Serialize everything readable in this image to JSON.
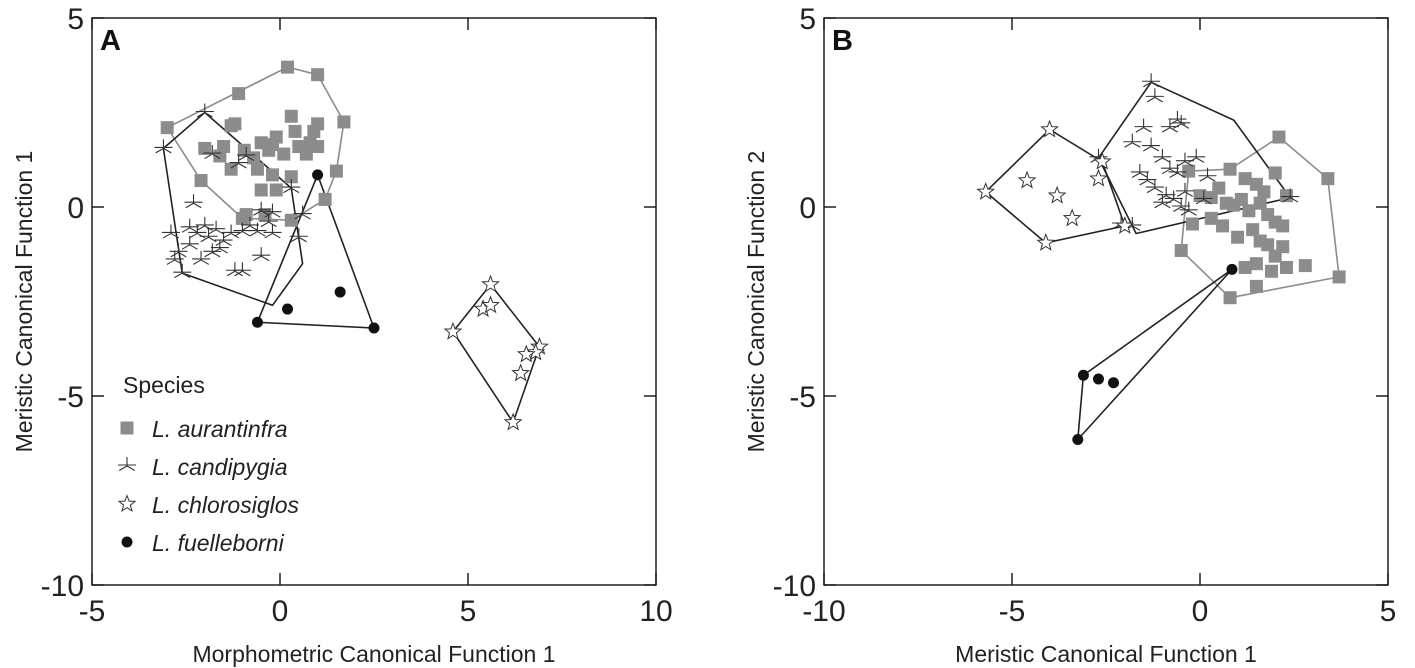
{
  "chart_data": [
    {
      "type": "scatter",
      "panel": "A",
      "xlabel": "Morphometric Canonical Function 1",
      "ylabel": "Meristic Canonical Function 1",
      "xlim": [
        -5,
        10
      ],
      "ylim": [
        -10,
        5
      ],
      "xticks": [
        -5,
        0,
        5,
        10
      ],
      "yticks": [
        -10,
        -5,
        0,
        5
      ],
      "grid": false,
      "legend": {
        "title": "Species",
        "placement": "bottom-left",
        "entries": [
          "L. aurantinfra",
          "L. candipygia",
          "L. chlorosiglos",
          "L. fuelleborni"
        ]
      },
      "series": [
        {
          "name": "L. aurantinfra",
          "marker": "square",
          "color": "#8c8c8c",
          "hull_color": "#8c8c8c",
          "points": [
            [
              -3.0,
              2.1
            ],
            [
              0.2,
              3.7
            ],
            [
              1.0,
              3.5
            ],
            [
              1.7,
              2.25
            ],
            [
              1.5,
              0.95
            ],
            [
              1.2,
              0.2
            ],
            [
              0.3,
              -0.35
            ],
            [
              -1.0,
              -0.3
            ],
            [
              -2.1,
              0.7
            ],
            [
              -1.1,
              3.0
            ],
            [
              -1.3,
              2.15
            ],
            [
              -1.2,
              2.2
            ],
            [
              -2.0,
              1.55
            ],
            [
              -1.6,
              1.35
            ],
            [
              -1.5,
              1.6
            ],
            [
              -0.95,
              1.5
            ],
            [
              -0.7,
              1.3
            ],
            [
              -0.5,
              1.7
            ],
            [
              -0.3,
              1.5
            ],
            [
              -0.2,
              1.65
            ],
            [
              -0.1,
              1.85
            ],
            [
              0.1,
              1.4
            ],
            [
              0.3,
              2.4
            ],
            [
              0.4,
              2.0
            ],
            [
              0.5,
              1.6
            ],
            [
              0.7,
              1.4
            ],
            [
              0.8,
              1.7
            ],
            [
              0.9,
              2.0
            ],
            [
              1.0,
              2.2
            ],
            [
              1.0,
              1.6
            ],
            [
              -1.3,
              1.0
            ],
            [
              -0.6,
              1.0
            ],
            [
              -0.2,
              0.85
            ],
            [
              0.3,
              0.8
            ],
            [
              -0.5,
              0.45
            ],
            [
              -0.1,
              0.45
            ],
            [
              -0.9,
              -0.2
            ],
            [
              -0.4,
              -0.2
            ]
          ],
          "hull": [
            [
              -3.0,
              2.1
            ],
            [
              0.2,
              3.7
            ],
            [
              1.0,
              3.5
            ],
            [
              1.7,
              2.25
            ],
            [
              1.5,
              0.95
            ],
            [
              1.2,
              0.2
            ],
            [
              0.3,
              -0.35
            ],
            [
              -1.0,
              -0.3
            ],
            [
              -2.1,
              0.7
            ],
            [
              -3.0,
              2.1
            ]
          ]
        },
        {
          "name": "L. candipygia",
          "marker": "asterisk",
          "color": "#333333",
          "hull_color": "#222222",
          "points": [
            [
              -3.1,
              1.55
            ],
            [
              -2.0,
              2.5
            ],
            [
              -1.8,
              1.4
            ],
            [
              -1.1,
              1.15
            ],
            [
              -0.9,
              1.35
            ],
            [
              -2.3,
              0.1
            ],
            [
              -2.4,
              -0.55
            ],
            [
              -2.2,
              -0.7
            ],
            [
              -2.0,
              -0.5
            ],
            [
              -1.9,
              -0.8
            ],
            [
              -1.7,
              -0.6
            ],
            [
              -1.5,
              -0.9
            ],
            [
              -1.3,
              -0.7
            ],
            [
              -1.0,
              -0.65
            ],
            [
              -0.8,
              -0.5
            ],
            [
              -0.6,
              -0.65
            ],
            [
              -0.3,
              -0.4
            ],
            [
              -0.5,
              -0.1
            ],
            [
              -0.2,
              -0.15
            ],
            [
              0.3,
              0.5
            ],
            [
              0.6,
              -0.2
            ],
            [
              -2.9,
              -0.7
            ],
            [
              -2.7,
              -1.2
            ],
            [
              -2.6,
              -1.75
            ],
            [
              -2.8,
              -1.4
            ],
            [
              -2.4,
              -1.0
            ],
            [
              -2.1,
              -1.4
            ],
            [
              -1.8,
              -1.2
            ],
            [
              -1.6,
              -1.1
            ],
            [
              -1.2,
              -1.7
            ],
            [
              -1.0,
              -1.7
            ],
            [
              -0.5,
              -1.3
            ],
            [
              -0.2,
              -0.7
            ],
            [
              0.5,
              -0.8
            ]
          ],
          "hull": [
            [
              -3.1,
              1.55
            ],
            [
              -2.0,
              2.5
            ],
            [
              0.3,
              0.5
            ],
            [
              0.6,
              -1.5
            ],
            [
              -0.2,
              -2.6
            ],
            [
              -2.6,
              -1.75
            ],
            [
              -3.1,
              1.55
            ]
          ]
        },
        {
          "name": "L. chlorosiglos",
          "marker": "star",
          "color": "#333333",
          "hull_color": "#222222",
          "points": [
            [
              4.6,
              -3.3
            ],
            [
              5.6,
              -2.05
            ],
            [
              6.9,
              -3.7
            ],
            [
              6.8,
              -3.85
            ],
            [
              6.55,
              -3.9
            ],
            [
              6.4,
              -4.4
            ],
            [
              6.2,
              -5.7
            ],
            [
              5.4,
              -2.7
            ],
            [
              5.6,
              -2.6
            ]
          ],
          "hull": [
            [
              4.6,
              -3.3
            ],
            [
              5.6,
              -2.05
            ],
            [
              6.9,
              -3.7
            ],
            [
              6.2,
              -5.7
            ],
            [
              4.6,
              -3.3
            ]
          ]
        },
        {
          "name": "L. fuelleborni",
          "marker": "circle",
          "color": "#111111",
          "hull_color": "#222222",
          "points": [
            [
              1.0,
              0.85
            ],
            [
              2.5,
              -3.2
            ],
            [
              -0.6,
              -3.05
            ],
            [
              0.2,
              -2.7
            ],
            [
              1.6,
              -2.25
            ]
          ],
          "hull": [
            [
              1.0,
              0.85
            ],
            [
              2.5,
              -3.2
            ],
            [
              -0.6,
              -3.05
            ],
            [
              1.0,
              0.85
            ]
          ]
        }
      ]
    },
    {
      "type": "scatter",
      "panel": "B",
      "xlabel": "Meristic Canonical Function 1",
      "ylabel": "Meristic Canonical Function 2",
      "xlim": [
        -10,
        5
      ],
      "ylim": [
        -10,
        5
      ],
      "xticks": [
        -10,
        -5,
        0,
        5
      ],
      "yticks": [
        -10,
        -5,
        0,
        5
      ],
      "grid": false,
      "series": [
        {
          "name": "L. aurantinfra",
          "marker": "square",
          "color": "#8c8c8c",
          "hull_color": "#8c8c8c",
          "points": [
            [
              2.1,
              1.85
            ],
            [
              3.4,
              0.75
            ],
            [
              3.7,
              -1.85
            ],
            [
              0.8,
              -2.4
            ],
            [
              -0.5,
              -1.15
            ],
            [
              -0.3,
              0.95
            ],
            [
              0.8,
              1.0
            ],
            [
              1.2,
              0.75
            ],
            [
              1.5,
              0.6
            ],
            [
              1.7,
              0.4
            ],
            [
              2.0,
              0.9
            ],
            [
              2.3,
              0.3
            ],
            [
              0.0,
              0.3
            ],
            [
              0.3,
              0.25
            ],
            [
              0.5,
              0.5
            ],
            [
              0.7,
              0.1
            ],
            [
              0.9,
              0.05
            ],
            [
              1.1,
              0.2
            ],
            [
              1.3,
              -0.1
            ],
            [
              1.6,
              0.1
            ],
            [
              1.8,
              -0.2
            ],
            [
              2.0,
              -0.4
            ],
            [
              2.2,
              -0.5
            ],
            [
              -0.2,
              -0.45
            ],
            [
              0.3,
              -0.3
            ],
            [
              0.6,
              -0.5
            ],
            [
              1.0,
              -0.8
            ],
            [
              1.4,
              -0.6
            ],
            [
              1.6,
              -0.9
            ],
            [
              1.8,
              -1.0
            ],
            [
              2.0,
              -1.3
            ],
            [
              1.5,
              -1.5
            ],
            [
              1.2,
              -1.6
            ],
            [
              1.9,
              -1.7
            ],
            [
              2.3,
              -1.6
            ],
            [
              1.5,
              -2.1
            ],
            [
              2.2,
              -1.05
            ],
            [
              2.8,
              -1.55
            ]
          ],
          "hull": [
            [
              -0.3,
              0.95
            ],
            [
              0.8,
              1.0
            ],
            [
              2.1,
              1.85
            ],
            [
              3.4,
              0.75
            ],
            [
              3.7,
              -1.85
            ],
            [
              0.8,
              -2.4
            ],
            [
              -0.5,
              -1.15
            ],
            [
              -0.3,
              0.95
            ]
          ]
        },
        {
          "name": "L. candipygia",
          "marker": "asterisk",
          "color": "#333333",
          "hull_color": "#222222",
          "points": [
            [
              -1.3,
              3.3
            ],
            [
              -1.2,
              2.9
            ],
            [
              -2.7,
              1.3
            ],
            [
              -1.8,
              1.7
            ],
            [
              -1.5,
              2.1
            ],
            [
              -0.8,
              2.1
            ],
            [
              -0.6,
              2.3
            ],
            [
              -0.5,
              2.2
            ],
            [
              -1.3,
              1.6
            ],
            [
              -1.0,
              1.3
            ],
            [
              -0.8,
              1.0
            ],
            [
              -0.6,
              0.9
            ],
            [
              -0.4,
              1.2
            ],
            [
              -0.1,
              1.3
            ],
            [
              0.2,
              0.8
            ],
            [
              -1.6,
              0.9
            ],
            [
              -1.4,
              0.7
            ],
            [
              -1.2,
              0.5
            ],
            [
              -0.9,
              0.3
            ],
            [
              -0.7,
              0.2
            ],
            [
              -0.5,
              0.0
            ],
            [
              -0.3,
              -0.1
            ],
            [
              0.1,
              0.2
            ],
            [
              -2.1,
              -0.45
            ],
            [
              -1.8,
              -0.5
            ],
            [
              -1.0,
              0.1
            ],
            [
              -0.4,
              0.4
            ],
            [
              2.4,
              0.25
            ]
          ],
          "hull": [
            [
              -1.3,
              3.3
            ],
            [
              0.9,
              2.3
            ],
            [
              2.4,
              0.25
            ],
            [
              -1.7,
              -0.7
            ],
            [
              -2.7,
              1.3
            ],
            [
              -1.3,
              3.3
            ]
          ]
        },
        {
          "name": "L. chlorosiglos",
          "marker": "star",
          "color": "#333333",
          "hull_color": "#222222",
          "points": [
            [
              -5.7,
              0.4
            ],
            [
              -4.0,
              2.05
            ],
            [
              -4.1,
              -0.95
            ],
            [
              -4.6,
              0.7
            ],
            [
              -3.8,
              0.3
            ],
            [
              -3.4,
              -0.3
            ],
            [
              -2.7,
              0.75
            ],
            [
              -2.6,
              1.2
            ],
            [
              -2.0,
              -0.5
            ]
          ],
          "hull": [
            [
              -5.7,
              0.4
            ],
            [
              -4.0,
              2.05
            ],
            [
              -2.6,
              1.2
            ],
            [
              -2.0,
              -0.5
            ],
            [
              -4.1,
              -0.95
            ],
            [
              -5.7,
              0.4
            ]
          ]
        },
        {
          "name": "L. fuelleborni",
          "marker": "circle",
          "color": "#111111",
          "hull_color": "#222222",
          "points": [
            [
              0.85,
              -1.65
            ],
            [
              -3.1,
              -4.45
            ],
            [
              -3.25,
              -6.15
            ],
            [
              -2.7,
              -4.55
            ],
            [
              -2.3,
              -4.65
            ]
          ],
          "hull": [
            [
              0.85,
              -1.65
            ],
            [
              -3.1,
              -4.45
            ],
            [
              -3.25,
              -6.15
            ],
            [
              0.85,
              -1.65
            ]
          ]
        }
      ]
    }
  ]
}
